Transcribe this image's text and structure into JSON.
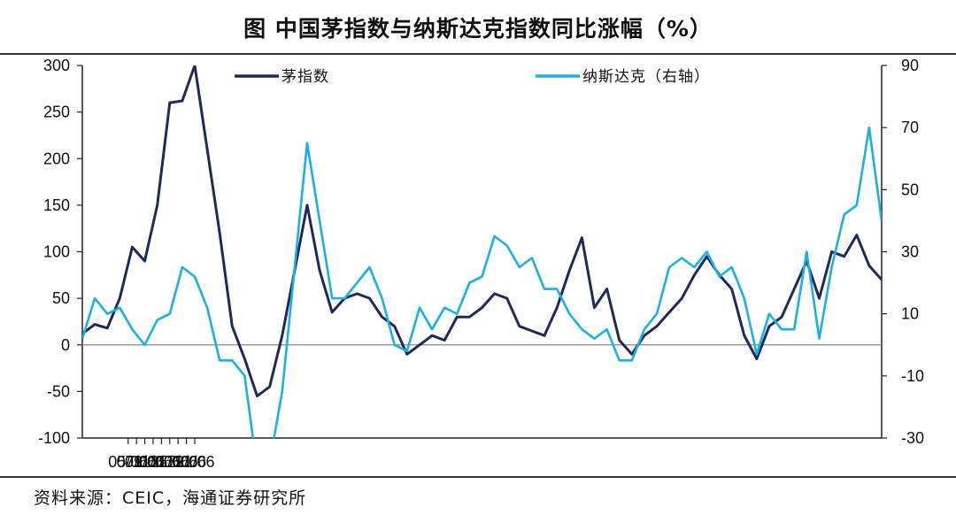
{
  "title": "图  中国茅指数与纳斯达克指数同比涨幅（%）",
  "source": "资料来源：CEIC，海通证券研究所",
  "chart_data": {
    "type": "line",
    "title": "图  中国茅指数与纳斯达克指数同比涨幅（%）",
    "x_tick_labels": [
      "05/06",
      "07/06",
      "09/06",
      "11/06",
      "13/06",
      "15/06",
      "17/06",
      "19/06",
      "21/06"
    ],
    "x_range": [
      "2005-06",
      "2021-06"
    ],
    "y_left": {
      "range": [
        -100,
        300
      ],
      "ticks": [
        "300",
        "250",
        "200",
        "150",
        "100",
        "50",
        "0",
        "-50",
        "-100"
      ]
    },
    "y_right": {
      "range": [
        -30,
        90
      ],
      "ticks": [
        "90",
        "70",
        "50",
        "30",
        "10",
        "-10",
        "-30"
      ]
    },
    "grid": false,
    "legend_position": "top",
    "series": [
      {
        "name": "茅指数",
        "axis": "left",
        "color": "#1f2a5c",
        "points": [
          [
            "2005-06",
            12
          ],
          [
            "2005-09",
            22
          ],
          [
            "2005-12",
            18
          ],
          [
            "2006-03",
            50
          ],
          [
            "2006-06",
            105
          ],
          [
            "2006-09",
            90
          ],
          [
            "2006-12",
            150
          ],
          [
            "2007-03",
            260
          ],
          [
            "2007-06",
            262
          ],
          [
            "2007-09",
            300
          ],
          [
            "2007-12",
            210
          ],
          [
            "2008-03",
            120
          ],
          [
            "2008-06",
            20
          ],
          [
            "2008-09",
            -15
          ],
          [
            "2008-12",
            -55
          ],
          [
            "2009-03",
            -45
          ],
          [
            "2009-06",
            10
          ],
          [
            "2009-09",
            80
          ],
          [
            "2009-12",
            150
          ],
          [
            "2010-03",
            80
          ],
          [
            "2010-06",
            35
          ],
          [
            "2010-09",
            50
          ],
          [
            "2010-12",
            55
          ],
          [
            "2011-03",
            50
          ],
          [
            "2011-06",
            30
          ],
          [
            "2011-09",
            20
          ],
          [
            "2011-12",
            -10
          ],
          [
            "2012-03",
            0
          ],
          [
            "2012-06",
            10
          ],
          [
            "2012-09",
            5
          ],
          [
            "2012-12",
            30
          ],
          [
            "2013-03",
            30
          ],
          [
            "2013-06",
            40
          ],
          [
            "2013-09",
            55
          ],
          [
            "2013-12",
            50
          ],
          [
            "2014-03",
            20
          ],
          [
            "2014-06",
            15
          ],
          [
            "2014-09",
            10
          ],
          [
            "2014-12",
            40
          ],
          [
            "2015-03",
            80
          ],
          [
            "2015-06",
            115
          ],
          [
            "2015-09",
            40
          ],
          [
            "2015-12",
            60
          ],
          [
            "2016-03",
            5
          ],
          [
            "2016-06",
            -10
          ],
          [
            "2016-09",
            10
          ],
          [
            "2016-12",
            20
          ],
          [
            "2017-03",
            35
          ],
          [
            "2017-06",
            50
          ],
          [
            "2017-09",
            75
          ],
          [
            "2017-12",
            95
          ],
          [
            "2018-03",
            75
          ],
          [
            "2018-06",
            60
          ],
          [
            "2018-09",
            10
          ],
          [
            "2018-12",
            -15
          ],
          [
            "2019-03",
            20
          ],
          [
            "2019-06",
            30
          ],
          [
            "2019-09",
            60
          ],
          [
            "2019-12",
            90
          ],
          [
            "2020-03",
            50
          ],
          [
            "2020-06",
            100
          ],
          [
            "2020-09",
            95
          ],
          [
            "2020-12",
            118
          ],
          [
            "2021-03",
            85
          ],
          [
            "2021-06",
            70
          ]
        ]
      },
      {
        "name": "纳斯达克（右轴）",
        "axis": "right",
        "color": "#1ab0e8",
        "points": [
          [
            "2005-06",
            2
          ],
          [
            "2005-09",
            15
          ],
          [
            "2005-12",
            10
          ],
          [
            "2006-03",
            12
          ],
          [
            "2006-06",
            5
          ],
          [
            "2006-09",
            0
          ],
          [
            "2006-12",
            8
          ],
          [
            "2007-03",
            10
          ],
          [
            "2007-06",
            25
          ],
          [
            "2007-09",
            22
          ],
          [
            "2007-12",
            12
          ],
          [
            "2008-03",
            -5
          ],
          [
            "2008-06",
            -5
          ],
          [
            "2008-09",
            -10
          ],
          [
            "2008-12",
            -40
          ],
          [
            "2009-03",
            -38
          ],
          [
            "2009-06",
            -15
          ],
          [
            "2009-09",
            25
          ],
          [
            "2009-12",
            65
          ],
          [
            "2010-03",
            40
          ],
          [
            "2010-06",
            15
          ],
          [
            "2010-09",
            15
          ],
          [
            "2010-12",
            20
          ],
          [
            "2011-03",
            25
          ],
          [
            "2011-06",
            15
          ],
          [
            "2011-09",
            0
          ],
          [
            "2011-12",
            -2
          ],
          [
            "2012-03",
            12
          ],
          [
            "2012-06",
            5
          ],
          [
            "2012-09",
            12
          ],
          [
            "2012-12",
            10
          ],
          [
            "2013-03",
            20
          ],
          [
            "2013-06",
            22
          ],
          [
            "2013-09",
            35
          ],
          [
            "2013-12",
            32
          ],
          [
            "2014-03",
            25
          ],
          [
            "2014-06",
            28
          ],
          [
            "2014-09",
            18
          ],
          [
            "2014-12",
            18
          ],
          [
            "2015-03",
            10
          ],
          [
            "2015-06",
            5
          ],
          [
            "2015-09",
            2
          ],
          [
            "2015-12",
            5
          ],
          [
            "2016-03",
            -5
          ],
          [
            "2016-06",
            -5
          ],
          [
            "2016-09",
            5
          ],
          [
            "2016-12",
            10
          ],
          [
            "2017-03",
            25
          ],
          [
            "2017-06",
            28
          ],
          [
            "2017-09",
            25
          ],
          [
            "2017-12",
            30
          ],
          [
            "2018-03",
            22
          ],
          [
            "2018-06",
            25
          ],
          [
            "2018-09",
            15
          ],
          [
            "2018-12",
            -3
          ],
          [
            "2019-03",
            10
          ],
          [
            "2019-06",
            5
          ],
          [
            "2019-09",
            5
          ],
          [
            "2019-12",
            30
          ],
          [
            "2020-03",
            2
          ],
          [
            "2020-06",
            25
          ],
          [
            "2020-09",
            42
          ],
          [
            "2020-12",
            45
          ],
          [
            "2021-03",
            70
          ],
          [
            "2021-06",
            40
          ]
        ]
      }
    ]
  }
}
